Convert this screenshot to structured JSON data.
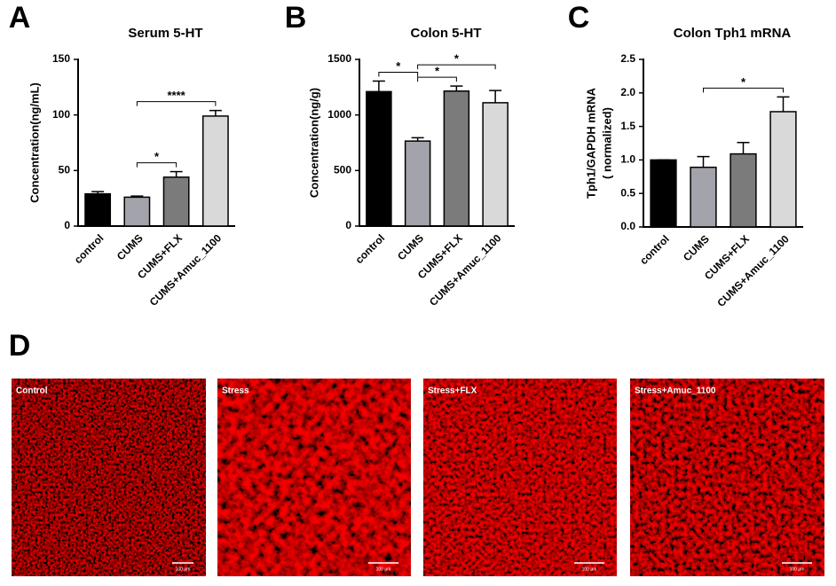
{
  "chart_data": [
    {
      "panel": "A",
      "type": "bar",
      "title": "Serum 5-HT",
      "ylabel": "Concentration(ng/mL)",
      "categories": [
        "control",
        "CUMS",
        "CUMS+FLX",
        "CUMS+Amuc_1100"
      ],
      "values": [
        29,
        26,
        44,
        99
      ],
      "errors": [
        2,
        1,
        5,
        5
      ],
      "colors": [
        "#000000",
        "#a3a3ab",
        "#7b7b7b",
        "#d9d9d9"
      ],
      "ylim": [
        0,
        150
      ],
      "yticks": [
        0,
        50,
        100,
        150
      ],
      "significance": [
        {
          "groups": [
            "CUMS",
            "CUMS+FLX"
          ],
          "label": "*"
        },
        {
          "groups": [
            "CUMS",
            "CUMS+Amuc_1100"
          ],
          "label": "****"
        }
      ]
    },
    {
      "panel": "B",
      "type": "bar",
      "title": "Colon 5-HT",
      "ylabel": "Concentration(ng/g)",
      "categories": [
        "control",
        "CUMS",
        "CUMS+FLX",
        "CUMS+Amuc_1100"
      ],
      "values": [
        1210,
        765,
        1215,
        1110
      ],
      "errors": [
        95,
        30,
        45,
        110
      ],
      "colors": [
        "#000000",
        "#a3a3ab",
        "#7b7b7b",
        "#d9d9d9"
      ],
      "ylim": [
        0,
        1500
      ],
      "yticks": [
        0,
        500,
        1000,
        1500
      ],
      "significance": [
        {
          "groups": [
            "control",
            "CUMS"
          ],
          "label": "*"
        },
        {
          "groups": [
            "CUMS",
            "CUMS+FLX"
          ],
          "label": "*"
        },
        {
          "groups": [
            "CUMS",
            "CUMS+Amuc_1100"
          ],
          "label": "*"
        }
      ]
    },
    {
      "panel": "C",
      "type": "bar",
      "title": "Colon Tph1 mRNA",
      "ylabel": [
        "Tph1/GAPDH mRNA",
        "( normalized)"
      ],
      "categories": [
        "control",
        "CUMS",
        "CUMS+FLX",
        "CUMS+Amuc_1100"
      ],
      "values": [
        1.0,
        0.89,
        1.09,
        1.72
      ],
      "errors": [
        0,
        0.16,
        0.17,
        0.22
      ],
      "colors": [
        "#000000",
        "#a3a3ab",
        "#7b7b7b",
        "#d9d9d9"
      ],
      "ylim": [
        0,
        2.5
      ],
      "yticks": [
        {
          "value": 0,
          "label": "0.0"
        },
        0.5,
        {
          "value": 1,
          "label": "1.0"
        },
        1.5,
        {
          "value": 2,
          "label": "2.0"
        },
        2.5
      ],
      "significance": [
        {
          "groups": [
            "CUMS",
            "CUMS+Amuc_1100"
          ],
          "label": "*"
        }
      ]
    }
  ],
  "micrographs": {
    "panel": "D",
    "images": [
      {
        "label": "Control",
        "scale": "100 μm"
      },
      {
        "label": "Stress",
        "scale": "100 μm"
      },
      {
        "label": "Stress+FLX",
        "scale": "100 μm"
      },
      {
        "label": "Stress+Amuc_1100",
        "scale": "100 μm"
      }
    ]
  }
}
